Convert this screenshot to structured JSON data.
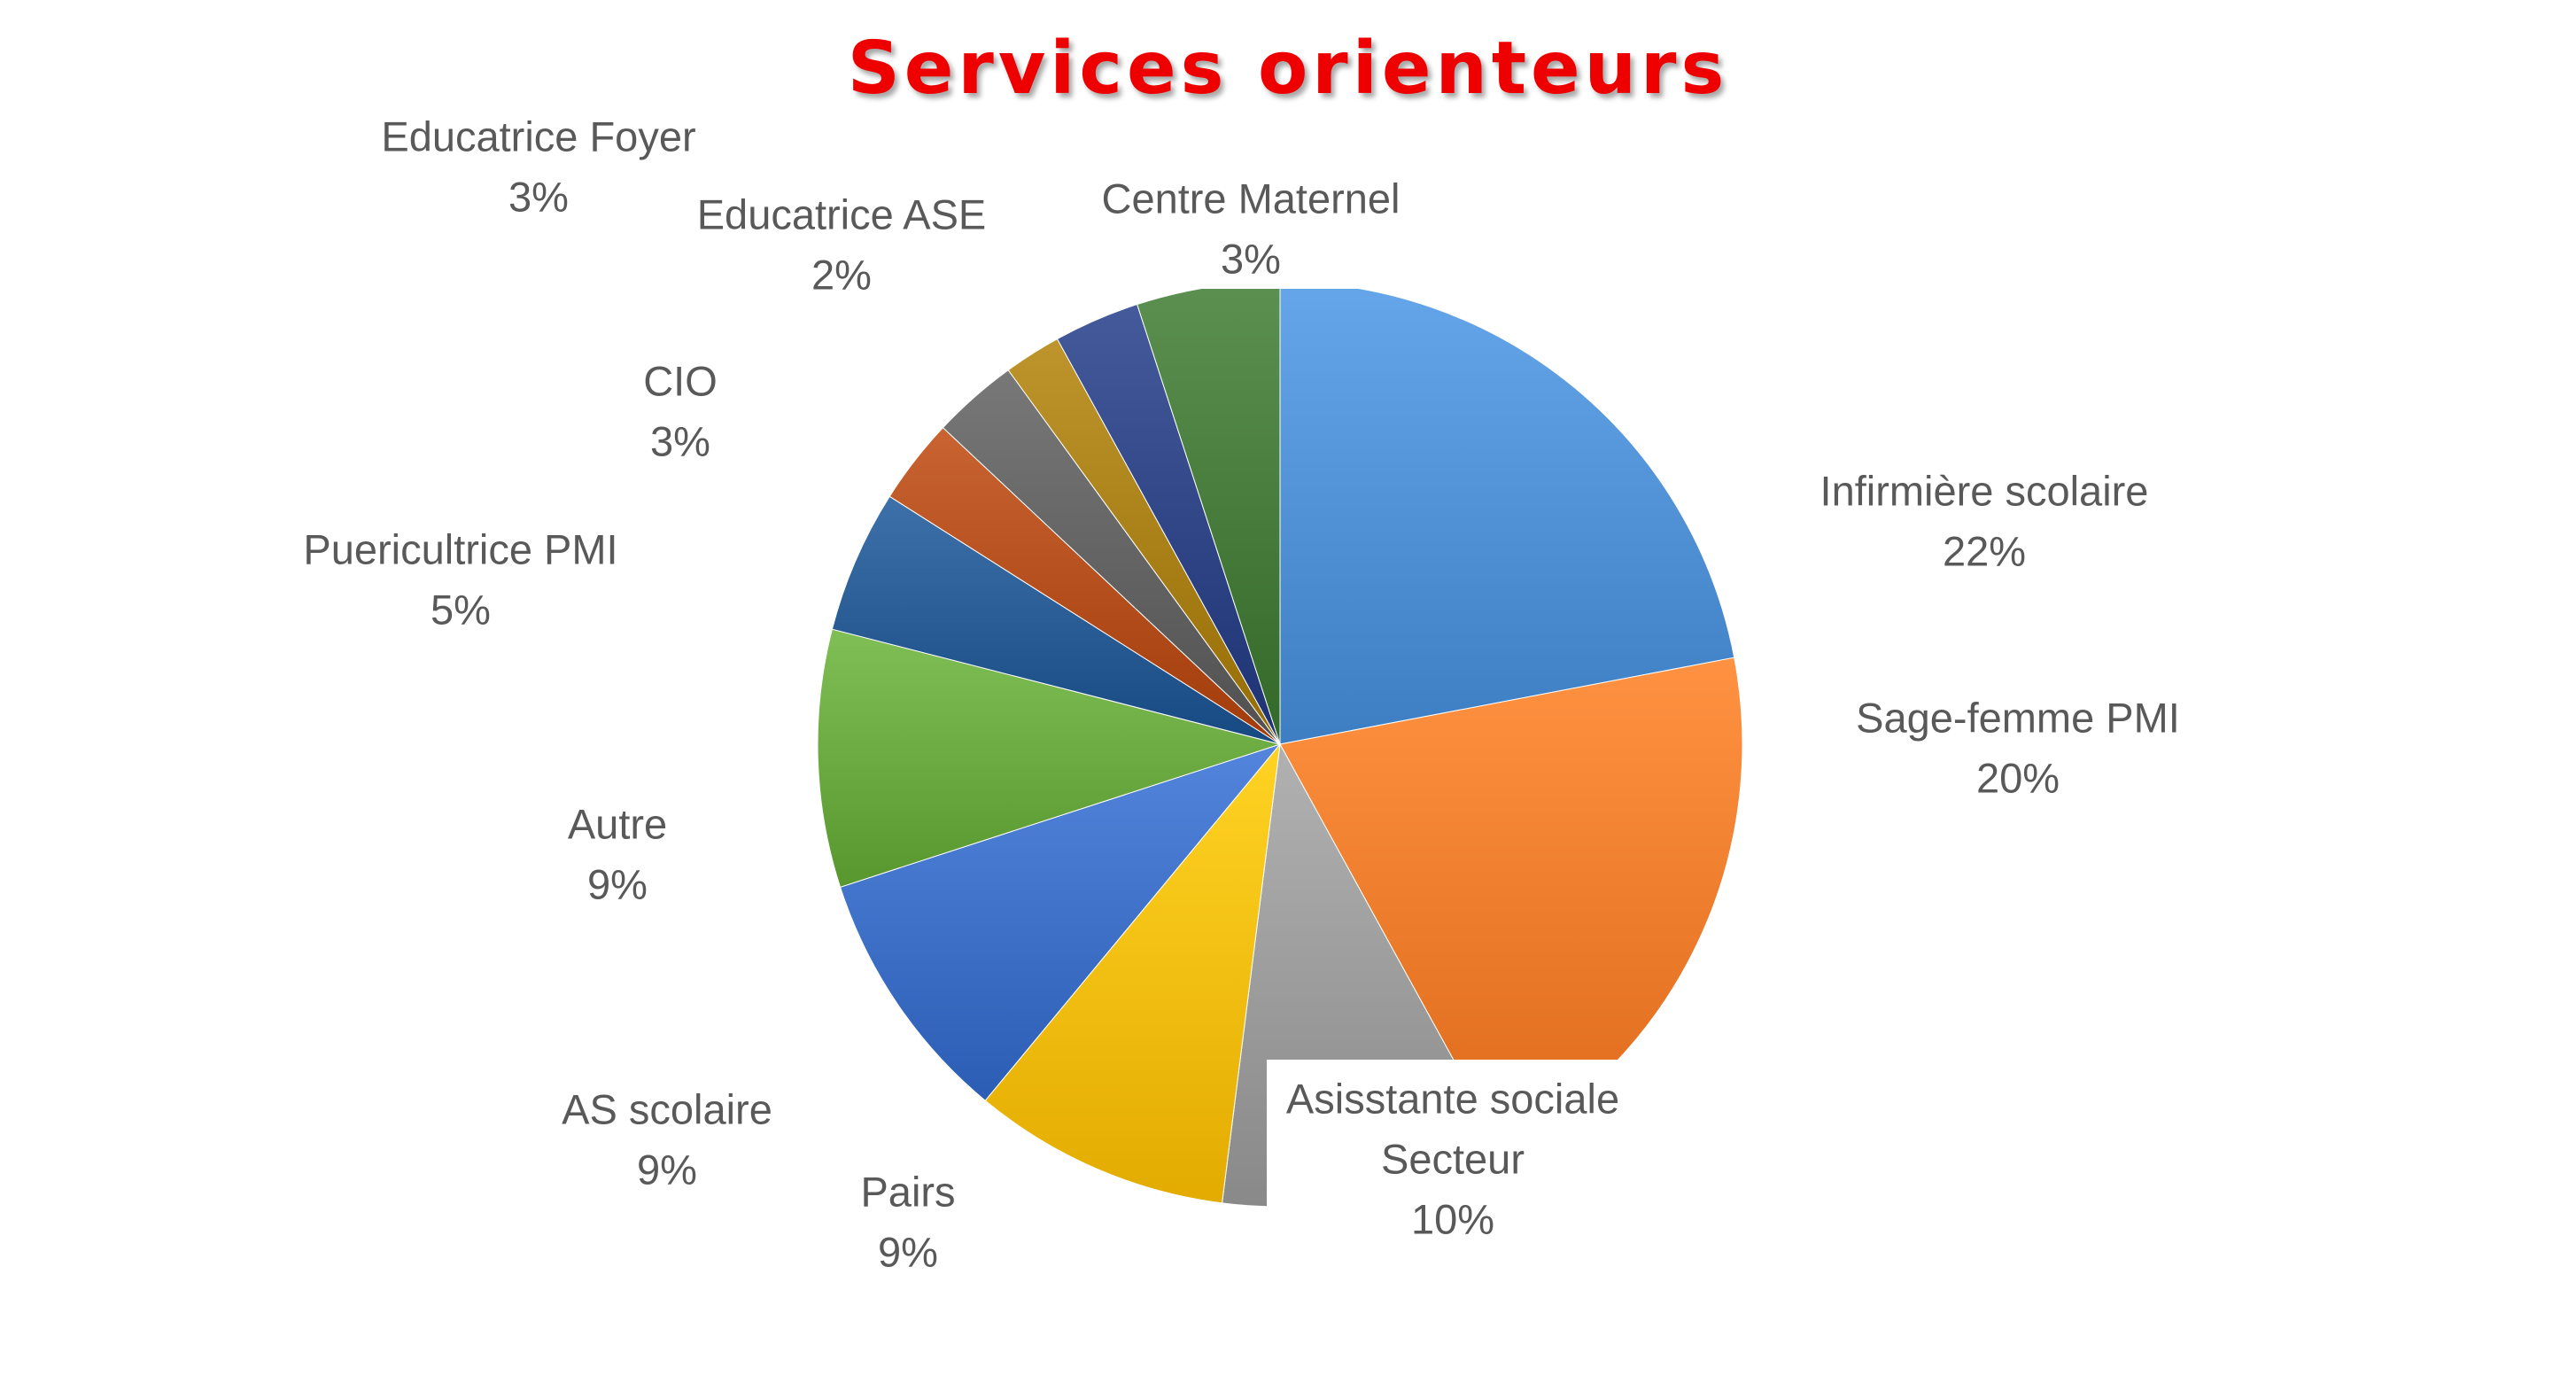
{
  "chart_data": {
    "type": "pie",
    "title": "Services orienteurs",
    "start_angle_deg": 0,
    "direction": "clockwise",
    "slices": [
      {
        "label": "Infirmière scolaire",
        "value": 22,
        "value_label": "22%",
        "color": "#4f8fd3",
        "label_pos": "right"
      },
      {
        "label": "Sage-femme PMI",
        "value": 20,
        "value_label": "20%",
        "color": "#ef7c2c",
        "label_pos": "right"
      },
      {
        "label": "Asisstante sociale Secteur",
        "label_lines": [
          "Asisstante sociale",
          "Secteur"
        ],
        "value": 10,
        "value_label": "10%",
        "color": "#9b9b9b",
        "label_pos": "bottom"
      },
      {
        "label": "Pairs",
        "value": 9,
        "value_label": "9%",
        "color": "#f5bd0d",
        "label_pos": "bottom"
      },
      {
        "label": "AS scolaire",
        "value": 9,
        "value_label": "9%",
        "color": "#3d6fc6",
        "label_pos": "bottom-left"
      },
      {
        "label": "Autre",
        "value": 9,
        "value_label": "9%",
        "color": "#6aa840",
        "label_pos": "left"
      },
      {
        "label": "Puericultrice PMI",
        "value": 5,
        "value_label": "5%",
        "color": "#285b93",
        "label_pos": "left"
      },
      {
        "label": "CIO",
        "value": 3,
        "value_label": "3%",
        "color": "#b34e1c",
        "label_pos": "left"
      },
      {
        "label": "Educatrice Foyer",
        "value": 3,
        "value_label": "3%",
        "color": "#626262",
        "label_pos": "top-left"
      },
      {
        "label": "Educatrice ASE",
        "value": 2,
        "value_label": "2%",
        "color": "#a87e16",
        "label_pos": "top-left"
      },
      {
        "label": "Centre Maternel",
        "value": 3,
        "value_label": "3%",
        "color": "#2e4484",
        "label_pos": "top"
      },
      {
        "label": "",
        "value": 5,
        "value_label": "",
        "color": "#457a3a",
        "label_pos": "none"
      }
    ],
    "title_color": "#ee0000",
    "label_color": "#595959"
  }
}
